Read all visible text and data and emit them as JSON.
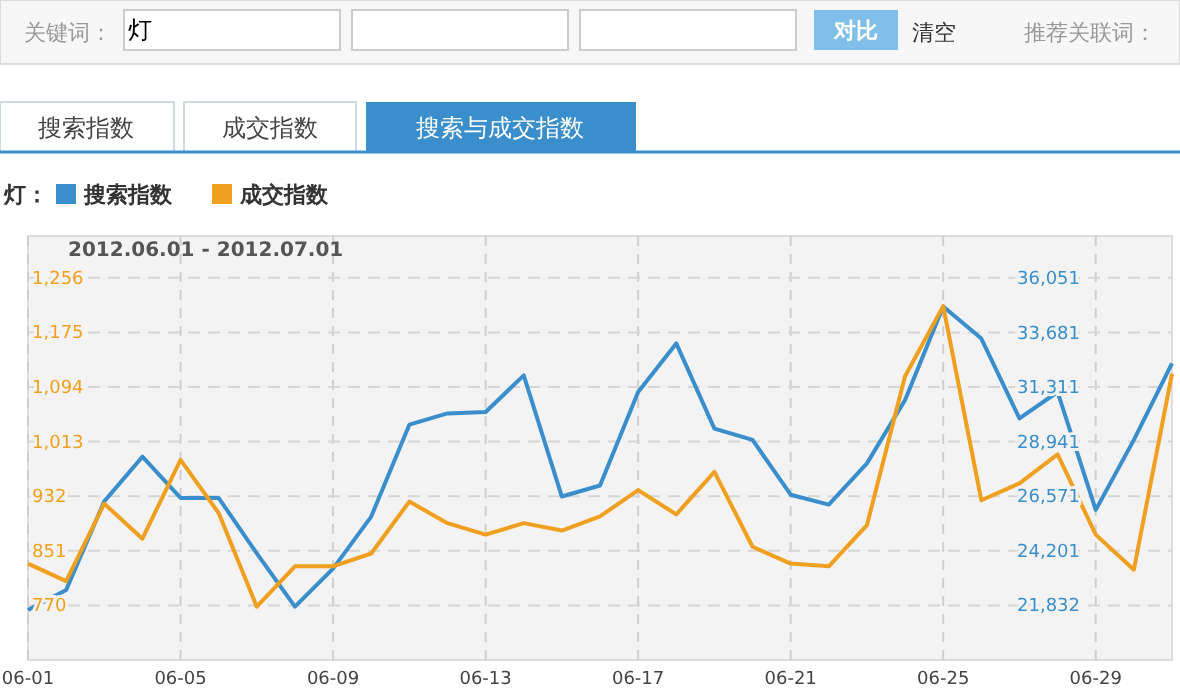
{
  "chart_data": {
    "type": "line",
    "subtitle": "2012.06.01 - 2012.07.01",
    "legend_title": "灯：",
    "legend": "top left",
    "grid": true,
    "annotations": [
      "关键词：",
      "灯",
      "对比",
      "清空",
      "推荐关联词：",
      "搜索指数",
      "成交指数",
      "搜索与成交指数"
    ],
    "x": [
      "2012-06-01",
      "2012-06-02",
      "2012-06-03",
      "2012-06-04",
      "2012-06-05",
      "2012-06-06",
      "2012-06-07",
      "2012-06-08",
      "2012-06-09",
      "2012-06-10",
      "2012-06-11",
      "2012-06-12",
      "2012-06-13",
      "2012-06-14",
      "2012-06-15",
      "2012-06-16",
      "2012-06-17",
      "2012-06-18",
      "2012-06-19",
      "2012-06-20",
      "2012-06-21",
      "2012-06-22",
      "2012-06-23",
      "2012-06-24",
      "2012-06-25",
      "2012-06-26",
      "2012-06-27",
      "2012-06-28",
      "2012-06-29",
      "2012-06-30",
      "2012-07-01"
    ],
    "xlim": [
      "2012-06-01",
      "2012-07-01"
    ],
    "xticks": [
      {
        "value": "2012-06-01",
        "label": "06-01"
      },
      {
        "value": "2012-06-05",
        "label": "06-05"
      },
      {
        "value": "2012-06-09",
        "label": "06-09"
      },
      {
        "value": "2012-06-13",
        "label": "06-13"
      },
      {
        "value": "2012-06-17",
        "label": "06-17"
      },
      {
        "value": "2012-06-21",
        "label": "06-21"
      },
      {
        "value": "2012-06-25",
        "label": "06-25"
      },
      {
        "value": "2012-06-29",
        "label": "06-29"
      }
    ],
    "ylim": [
      689,
      1318
    ],
    "yticks": [
      {
        "value": 770,
        "label": "770"
      },
      {
        "value": 851,
        "label": "851"
      },
      {
        "value": 932,
        "label": "932"
      },
      {
        "value": 1013,
        "label": "1,013"
      },
      {
        "value": 1094,
        "label": "1,094"
      },
      {
        "value": 1175,
        "label": "1,175"
      },
      {
        "value": 1256,
        "label": "1,256"
      }
    ],
    "y2lim": [
      19461,
      37875
    ],
    "y2ticks": [
      {
        "value": 21832,
        "label": "21,832"
      },
      {
        "value": 24201,
        "label": "24,201"
      },
      {
        "value": 26571,
        "label": "26,571"
      },
      {
        "value": 28941,
        "label": "28,941"
      },
      {
        "value": 31311,
        "label": "31,311"
      },
      {
        "value": 33681,
        "label": "33,681"
      },
      {
        "value": 36051,
        "label": "36,051"
      }
    ],
    "series": [
      {
        "name": "搜索指数",
        "color": "#3a8ecb",
        "axis": "y2",
        "values": [
          21630,
          22500,
          26350,
          28290,
          26500,
          26500,
          24090,
          21780,
          23430,
          25690,
          29680,
          30170,
          30230,
          31820,
          26560,
          27040,
          31100,
          33210,
          29510,
          29020,
          26640,
          26210,
          28000,
          30750,
          34810,
          33420,
          29950,
          31100,
          25980,
          29020,
          32340
        ]
      },
      {
        "name": "成交指数",
        "color": "#f0a020",
        "values": [
          832,
          806,
          921,
          869,
          986,
          907,
          768,
          828,
          828,
          847,
          924,
          892,
          875,
          892,
          881,
          902,
          941,
          905,
          968,
          857,
          832,
          828,
          889,
          1110,
          1214,
          926,
          951,
          994,
          875,
          823,
          1114
        ]
      }
    ]
  }
}
